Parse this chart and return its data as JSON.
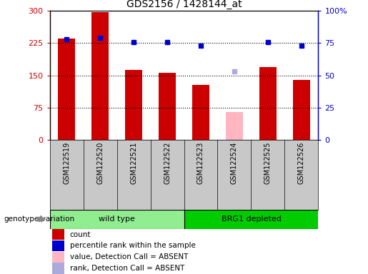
{
  "title": "GDS2156 / 1428144_at",
  "samples": [
    "GSM122519",
    "GSM122520",
    "GSM122521",
    "GSM122522",
    "GSM122523",
    "GSM122524",
    "GSM122525",
    "GSM122526"
  ],
  "count_values": [
    235,
    298,
    163,
    156,
    128,
    null,
    170,
    140
  ],
  "count_absent": [
    null,
    null,
    null,
    null,
    null,
    65,
    null,
    null
  ],
  "percentile_values": [
    78,
    79,
    76,
    76,
    73,
    null,
    76,
    73
  ],
  "percentile_absent": [
    null,
    null,
    null,
    null,
    null,
    53,
    null,
    null
  ],
  "groups": [
    {
      "label": "wild type",
      "start": 0,
      "end": 3,
      "color": "#90EE90"
    },
    {
      "label": "BRG1 depleted",
      "start": 4,
      "end": 7,
      "color": "#00CC00"
    }
  ],
  "ylim_left": [
    0,
    300
  ],
  "ylim_right": [
    0,
    100
  ],
  "yticks_left": [
    0,
    75,
    150,
    225,
    300
  ],
  "ytick_labels_left": [
    "0",
    "75",
    "150",
    "225",
    "300"
  ],
  "yticks_right": [
    0,
    25,
    50,
    75,
    100
  ],
  "ytick_labels_right": [
    "0",
    "25",
    "50",
    "75",
    "100%"
  ],
  "bar_color": "#CC0000",
  "bar_absent_color": "#FFB6C1",
  "dot_color": "#0000CC",
  "dot_absent_color": "#AAAADD",
  "background_color": "#FFFFFF",
  "plot_bg_color": "#FFFFFF",
  "legend_items": [
    {
      "label": "count",
      "color": "#CC0000"
    },
    {
      "label": "percentile rank within the sample",
      "color": "#0000CC"
    },
    {
      "label": "value, Detection Call = ABSENT",
      "color": "#FFB6C1"
    },
    {
      "label": "rank, Detection Call = ABSENT",
      "color": "#AAAADD"
    }
  ],
  "genotype_label": "genotype/variation",
  "group_bg_color": "#C8C8C8"
}
